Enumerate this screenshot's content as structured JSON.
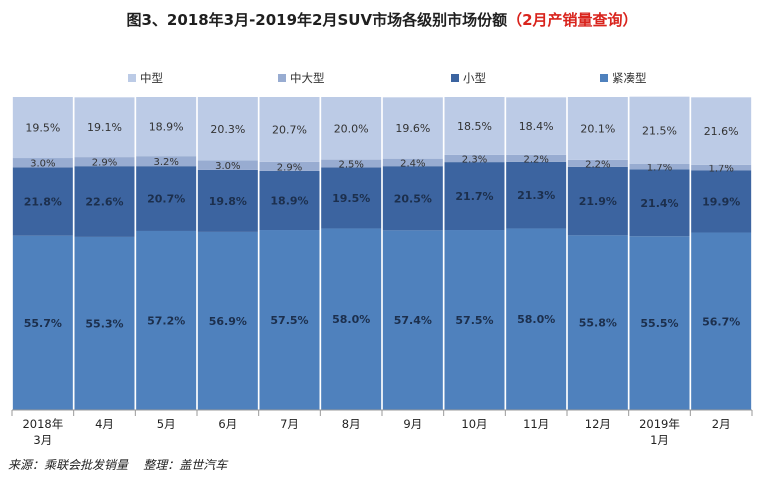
{
  "title": {
    "main": "图3、2018年3月-2019年2月SUV市场各级别市场份额",
    "highlight": "（2月产销量查询）"
  },
  "colors": {
    "zhongxing": "#bccbe6",
    "zhongdaxing": "#98acd1",
    "xiaoxing": "#3c64a0",
    "jincou": "#4f81bd",
    "highlight": "#d9241d"
  },
  "source": "来源：乘联会批发销量    整理：盖世汽车",
  "chart_data": {
    "type": "bar",
    "stacked": true,
    "categories": [
      [
        "2018年",
        "3月"
      ],
      [
        "4月"
      ],
      [
        "5月"
      ],
      [
        "6月"
      ],
      [
        "7月"
      ],
      [
        "8月"
      ],
      [
        "9月"
      ],
      [
        "10月"
      ],
      [
        "11月"
      ],
      [
        "12月"
      ],
      [
        "2019年",
        "1月"
      ],
      [
        "2月"
      ]
    ],
    "series": [
      {
        "name": "紧凑型",
        "key": "jincou",
        "values": [
          55.7,
          55.3,
          57.2,
          56.9,
          57.5,
          58.0,
          57.4,
          57.5,
          58.0,
          55.8,
          55.5,
          56.7
        ],
        "labels": [
          "55.7%",
          "55.3%",
          "57.2%",
          "56.9%",
          "57.5%",
          "58.0%",
          "57.4%",
          "57.5%",
          "58.0%",
          "55.8%",
          "55.5%",
          "56.7%"
        ]
      },
      {
        "name": "小型",
        "key": "xiaoxing",
        "values": [
          21.8,
          22.6,
          20.7,
          19.8,
          18.9,
          19.5,
          20.5,
          21.7,
          21.3,
          21.9,
          21.4,
          19.9
        ],
        "labels": [
          "21.8%",
          "22.6%",
          "20.7%",
          "19.8%",
          "18.9%",
          "19.5%",
          "20.5%",
          "21.7%",
          "21.3%",
          "21.9%",
          "21.4%",
          "19.9%"
        ]
      },
      {
        "name": "中大型",
        "key": "zhongdaxing",
        "values": [
          3.0,
          2.9,
          3.2,
          3.0,
          2.9,
          2.5,
          2.4,
          2.3,
          2.2,
          2.2,
          1.7,
          1.7
        ],
        "labels": [
          "3.0%",
          "2.9%",
          "3.2%",
          "3.0%",
          "2.9%",
          "2.5%",
          "2.4%",
          "2.3%",
          "2.2%",
          "2.2%",
          "1.7%",
          "1.7%"
        ]
      },
      {
        "name": "中型",
        "key": "zhongxing",
        "values": [
          19.5,
          19.1,
          18.9,
          20.3,
          20.7,
          20.0,
          19.6,
          18.5,
          18.4,
          20.1,
          21.5,
          21.6
        ],
        "labels": [
          "19.5%",
          "19.1%",
          "18.9%",
          "20.3%",
          "20.7%",
          "20.0%",
          "19.6%",
          "18.5%",
          "18.4%",
          "20.1%",
          "21.5%",
          "21.6%"
        ]
      }
    ],
    "legend": [
      "中型",
      "中大型",
      "小型",
      "紧凑型"
    ],
    "ylim": [
      0,
      100
    ],
    "grid": false,
    "legend_position": "top"
  }
}
